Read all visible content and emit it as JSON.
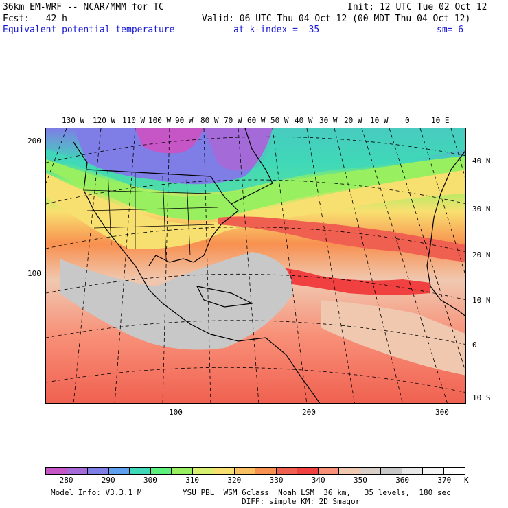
{
  "header": {
    "model_title": "36km EM-WRF -- NCAR/MMM for TC",
    "init_time": "Init: 12 UTC Tue 02 Oct 12",
    "forecast": "Fcst:   42 h",
    "valid_time": "Valid: 06 UTC Thu 04 Oct 12 (00 MDT Thu 04 Oct 12)",
    "field_name": "Equivalent potential temperature",
    "level": "at k-index =  35",
    "smoothing": "sm= 6"
  },
  "map": {
    "top_longitude_labels": [
      "130 W",
      "120 W",
      "110 W",
      "100 W",
      "90 W",
      "80 W",
      "70 W",
      "60 W",
      "50 W",
      "40 W",
      "30 W",
      "20 W",
      "10 W",
      "0",
      "10 E"
    ],
    "right_latitude_labels": [
      "40 N",
      "30 N",
      "20 N",
      "10 N",
      "0",
      "10 S"
    ],
    "left_grid_labels": [
      "200",
      "100"
    ],
    "bottom_grid_labels": [
      "100",
      "200",
      "300"
    ]
  },
  "colorbar": {
    "unit": "K",
    "tick_labels": [
      "280",
      "290",
      "300",
      "310",
      "320",
      "330",
      "340",
      "350",
      "360",
      "370"
    ],
    "colors": [
      "#c655c6",
      "#a36ad8",
      "#7e7ee6",
      "#5e9ff0",
      "#3fd8b8",
      "#5cf07c",
      "#98f060",
      "#d8f070",
      "#f8e070",
      "#f8c060",
      "#f89050",
      "#f06050",
      "#f04040",
      "#f89078",
      "#f0c8b0",
      "#d8d0c8",
      "#c8c8c8",
      "#e8e8e8",
      "#f4f4f4",
      "#ffffff"
    ]
  },
  "footer": {
    "model_info": "Model Info: V3.3.1 M",
    "physics_line1": "YSU PBL  WSM 6class  Noah LSM  36 km,   35 levels,  180 sec",
    "physics_line2": "DIFF: simple KM: 2D Smagor"
  }
}
